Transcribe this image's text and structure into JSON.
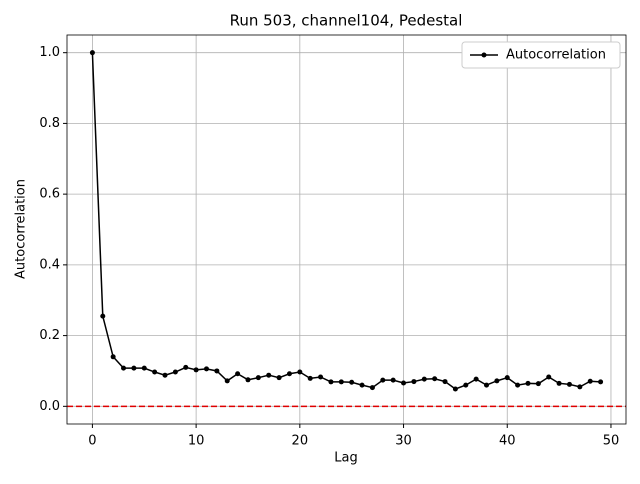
{
  "chart_data": {
    "type": "line",
    "title": "Run 503, channel104, Pedestal",
    "x_label": "Lag",
    "y_label": "Autocorrelation",
    "x": [
      0,
      1,
      2,
      3,
      4,
      5,
      6,
      7,
      8,
      9,
      10,
      11,
      12,
      13,
      14,
      15,
      16,
      17,
      18,
      19,
      20,
      21,
      22,
      23,
      24,
      25,
      26,
      27,
      28,
      29,
      30,
      31,
      32,
      33,
      34,
      35,
      36,
      37,
      38,
      39,
      40,
      41,
      42,
      43,
      44,
      45,
      46,
      47,
      48,
      49
    ],
    "series": [
      {
        "name": "Autocorrelation",
        "color": "#000000",
        "values": [
          1.0,
          0.255,
          0.14,
          0.108,
          0.108,
          0.108,
          0.097,
          0.088,
          0.097,
          0.11,
          0.103,
          0.106,
          0.1,
          0.072,
          0.092,
          0.075,
          0.081,
          0.088,
          0.081,
          0.092,
          0.097,
          0.079,
          0.083,
          0.069,
          0.069,
          0.068,
          0.06,
          0.053,
          0.074,
          0.074,
          0.066,
          0.07,
          0.077,
          0.078,
          0.07,
          0.049,
          0.06,
          0.077,
          0.06,
          0.072,
          0.081,
          0.06,
          0.065,
          0.064,
          0.083,
          0.065,
          0.062,
          0.055,
          0.071,
          0.069
        ]
      }
    ],
    "hline": {
      "value": 0,
      "color": "#e00000"
    },
    "xlim": [
      -2.45,
      51.45
    ],
    "ylim": [
      -0.05,
      1.05
    ],
    "xticks": [
      0,
      10,
      20,
      30,
      40,
      50
    ],
    "yticks": [
      {
        "value": 0,
        "label": "0.0"
      },
      0.2,
      0.4,
      0.6,
      0.8,
      {
        "value": 1,
        "label": "1.0"
      }
    ],
    "grid": true,
    "legend": "upper right"
  }
}
